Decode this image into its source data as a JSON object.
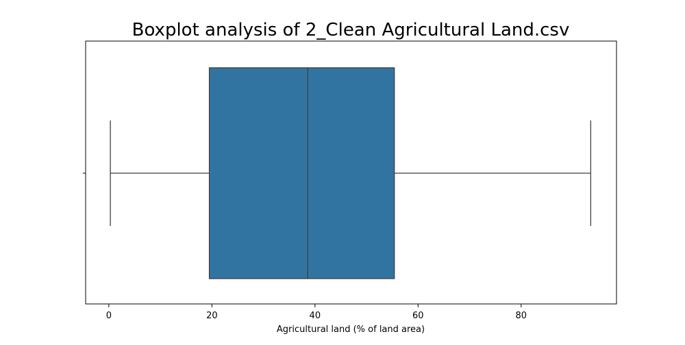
{
  "chart_data": {
    "type": "boxplot",
    "title": "Boxplot analysis of 2_Clean Agricultural Land.csv",
    "xlabel": "Agricultural land (% of land area)",
    "ylabel": "",
    "xlim": [
      -4.5,
      98.5
    ],
    "xticks": [
      0,
      20,
      40,
      60,
      80
    ],
    "xtick_labels": [
      "0",
      "20",
      "40",
      "60",
      "80"
    ],
    "grid": false,
    "box": {
      "whisker_low": 0.3,
      "q1": 19.5,
      "median": 38.6,
      "q3": 55.4,
      "whisker_high": 93.5
    },
    "colors": {
      "box_fill": "#3274a1",
      "line": "#3f3f3f",
      "axes": "#000000"
    }
  }
}
